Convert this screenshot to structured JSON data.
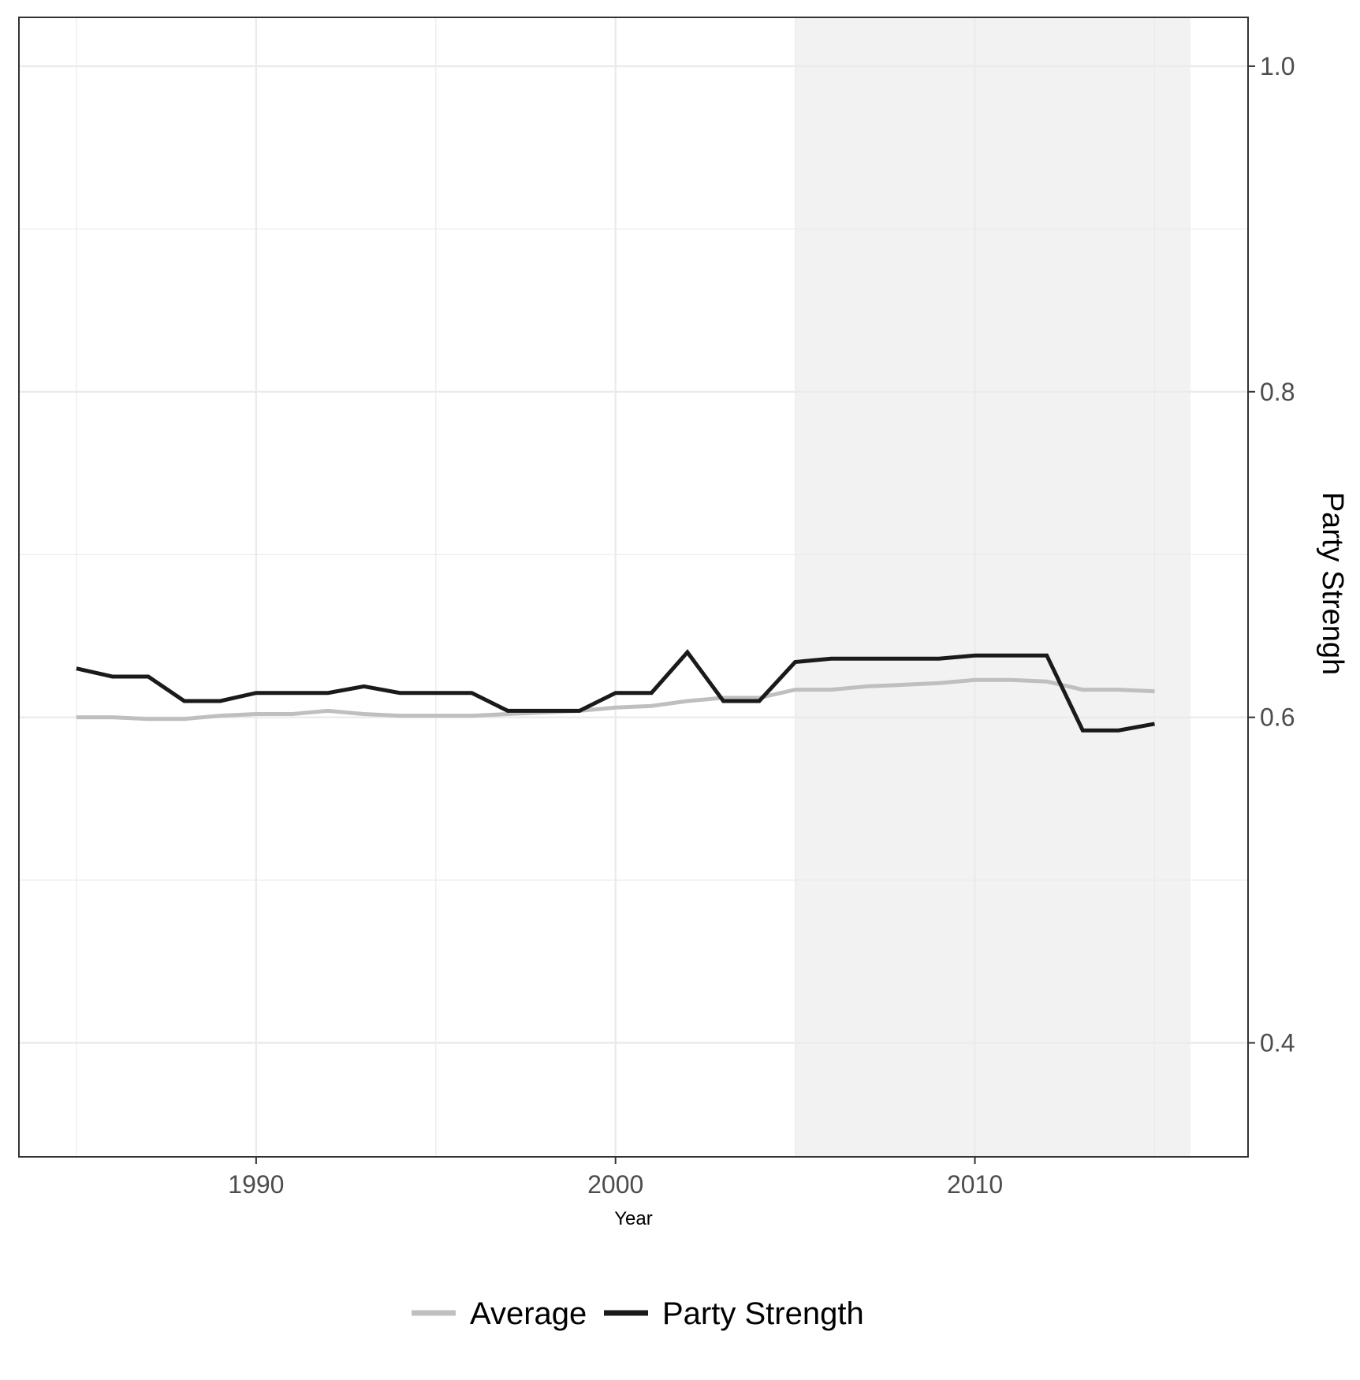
{
  "chart_data": {
    "type": "line",
    "title": "",
    "xlabel": "Year",
    "ylabel": "Party Strengh",
    "xlim": [
      1983.4,
      2017.6
    ],
    "ylim": [
      0.33,
      1.03
    ],
    "x_ticks": [
      1990,
      2000,
      2010
    ],
    "x_tick_labels": [
      "1990",
      "2000",
      "2010"
    ],
    "y_ticks": [
      0.4,
      0.6,
      0.8,
      1.0
    ],
    "y_tick_labels": [
      "0.4",
      "0.6",
      "0.8",
      "1.0"
    ],
    "y_axis_position": "right",
    "grid": true,
    "legend_position": "bottom",
    "shaded_region": {
      "x_start": 2005,
      "x_end": 2016,
      "color": "#f2f2f2"
    },
    "x": [
      1985,
      1986,
      1987,
      1988,
      1989,
      1990,
      1991,
      1992,
      1993,
      1994,
      1995,
      1996,
      1997,
      1998,
      1999,
      2000,
      2001,
      2002,
      2003,
      2004,
      2005,
      2006,
      2007,
      2008,
      2009,
      2010,
      2011,
      2012,
      2013,
      2014,
      2015
    ],
    "series": [
      {
        "name": "Average",
        "color": "#bfbfbf",
        "values": [
          0.6,
          0.6,
          0.599,
          0.599,
          0.601,
          0.602,
          0.602,
          0.604,
          0.602,
          0.601,
          0.601,
          0.601,
          0.602,
          0.603,
          0.604,
          0.606,
          0.607,
          0.61,
          0.612,
          0.612,
          0.617,
          0.617,
          0.619,
          0.62,
          0.621,
          0.623,
          0.623,
          0.622,
          0.617,
          0.617,
          0.616
        ]
      },
      {
        "name": "Party Strength",
        "color": "#1a1a1a",
        "values": [
          0.63,
          0.625,
          0.625,
          0.61,
          0.61,
          0.615,
          0.615,
          0.615,
          0.619,
          0.615,
          0.615,
          0.615,
          0.604,
          0.604,
          0.604,
          0.615,
          0.615,
          0.64,
          0.61,
          0.61,
          0.634,
          0.636,
          0.636,
          0.636,
          0.636,
          0.638,
          0.638,
          0.638,
          0.592,
          0.592,
          0.596
        ]
      }
    ]
  }
}
